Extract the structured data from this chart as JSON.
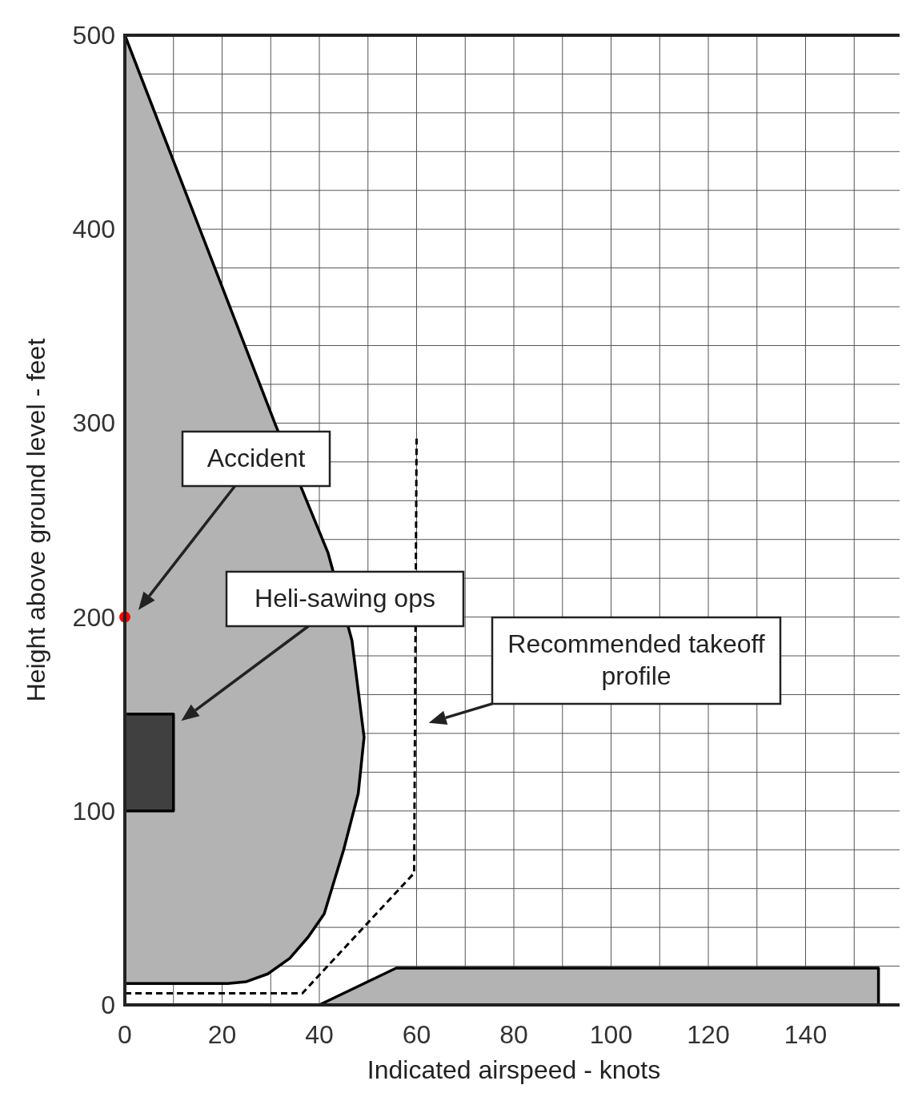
{
  "chart_data": {
    "type": "area",
    "xlabel": "Indicated airspeed - knots",
    "ylabel": "Height above ground level - feet",
    "xlim": [
      0,
      160
    ],
    "ylim": [
      0,
      500
    ],
    "xticks": [
      0,
      {
        "value": 10,
        "label": null
      },
      20,
      {
        "value": 30,
        "label": null
      },
      40,
      {
        "value": 50,
        "label": null
      },
      60,
      {
        "value": 70,
        "label": null
      },
      80,
      {
        "value": 90,
        "label": null
      },
      100,
      {
        "value": 110,
        "label": null
      },
      120,
      {
        "value": 130,
        "label": null
      },
      140,
      {
        "value": 150,
        "label": null
      },
      {
        "value": 160,
        "label": null
      }
    ],
    "yticks": [
      0,
      {
        "value": 20,
        "label": null
      },
      {
        "value": 40,
        "label": null
      },
      {
        "value": 60,
        "label": null
      },
      {
        "value": 80,
        "label": null
      },
      100,
      {
        "value": 120,
        "label": null
      },
      {
        "value": 140,
        "label": null
      },
      {
        "value": 160,
        "label": null
      },
      {
        "value": 180,
        "label": null
      },
      200,
      {
        "value": 220,
        "label": null
      },
      {
        "value": 240,
        "label": null
      },
      {
        "value": 260,
        "label": null
      },
      {
        "value": 280,
        "label": null
      },
      300,
      {
        "value": 320,
        "label": null
      },
      {
        "value": 340,
        "label": null
      },
      {
        "value": 360,
        "label": null
      },
      {
        "value": 380,
        "label": null
      },
      400,
      {
        "value": 420,
        "label": null
      },
      {
        "value": 440,
        "label": null
      },
      {
        "value": 460,
        "label": null
      },
      {
        "value": 480,
        "label": null
      },
      500
    ],
    "grid": true,
    "series": [
      {
        "color": "#b3b3b3",
        "x": [
          0,
          31,
          41.8,
          46.7,
          49.2,
          48,
          45,
          41,
          37.7,
          33.9,
          29.4,
          25,
          21.2,
          0
        ],
        "values": [
          500,
          299,
          233,
          188,
          138,
          109,
          80,
          47,
          35,
          24,
          16,
          12,
          11,
          11
        ]
      },
      {
        "color": "#b3b3b3",
        "x": [
          40,
          55.8,
          155,
          155
        ],
        "values": [
          0,
          19,
          19,
          0
        ]
      },
      {
        "color": "#404040",
        "x": [
          0,
          10,
          10,
          0
        ],
        "values": [
          100,
          100,
          150,
          150
        ]
      },
      {
        "type": "line",
        "color": "#000000",
        "line_style": "dashed",
        "x": [
          0,
          36.5,
          59.5,
          60
        ],
        "values": [
          6,
          6,
          68,
          292
        ]
      },
      {
        "type": "scatter",
        "color": "#ff0000",
        "marker": "circle",
        "x": [
          0
        ],
        "values": [
          200
        ]
      }
    ],
    "annotations": [
      "Accident",
      "Heli-sawing ops",
      "Recommended takeoff profile"
    ]
  }
}
